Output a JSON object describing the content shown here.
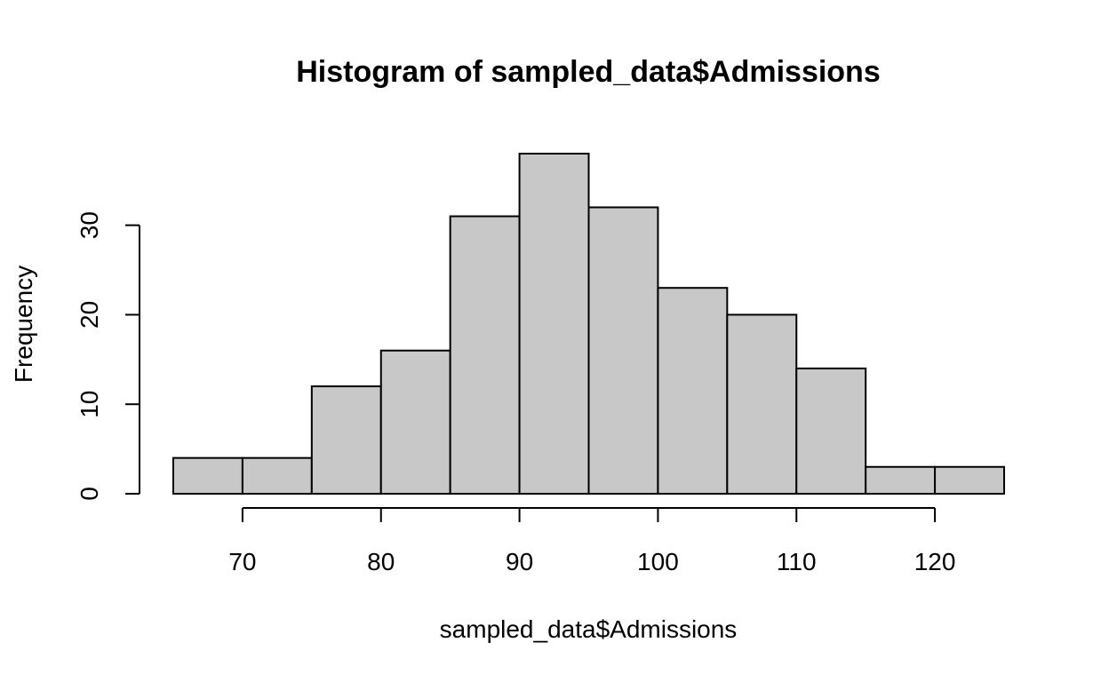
{
  "chart_data": {
    "type": "bar",
    "title": "Histogram of sampled_data$Admissions",
    "xlabel": "sampled_data$Admissions",
    "ylabel": "Frequency",
    "bins": [
      {
        "start": 65,
        "end": 70,
        "count": 4
      },
      {
        "start": 70,
        "end": 75,
        "count": 4
      },
      {
        "start": 75,
        "end": 80,
        "count": 12
      },
      {
        "start": 80,
        "end": 85,
        "count": 16
      },
      {
        "start": 85,
        "end": 90,
        "count": 31
      },
      {
        "start": 90,
        "end": 95,
        "count": 38
      },
      {
        "start": 95,
        "end": 100,
        "count": 32
      },
      {
        "start": 100,
        "end": 105,
        "count": 23
      },
      {
        "start": 105,
        "end": 110,
        "count": 20
      },
      {
        "start": 110,
        "end": 115,
        "count": 14
      },
      {
        "start": 115,
        "end": 120,
        "count": 3
      },
      {
        "start": 120,
        "end": 125,
        "count": 3
      }
    ],
    "xlim": [
      65,
      125
    ],
    "ylim": [
      0,
      38
    ],
    "x_ticks": [
      70,
      80,
      90,
      100,
      110,
      120
    ],
    "x_tick_labels": [
      "70",
      "80",
      "90",
      "100",
      "110",
      "120"
    ],
    "y_ticks": [
      0,
      10,
      20,
      30
    ],
    "y_tick_labels": [
      "0",
      "10",
      "20",
      "30"
    ],
    "bar_color": "#c8c8c8",
    "edge_color": "#000000",
    "grid": false
  }
}
